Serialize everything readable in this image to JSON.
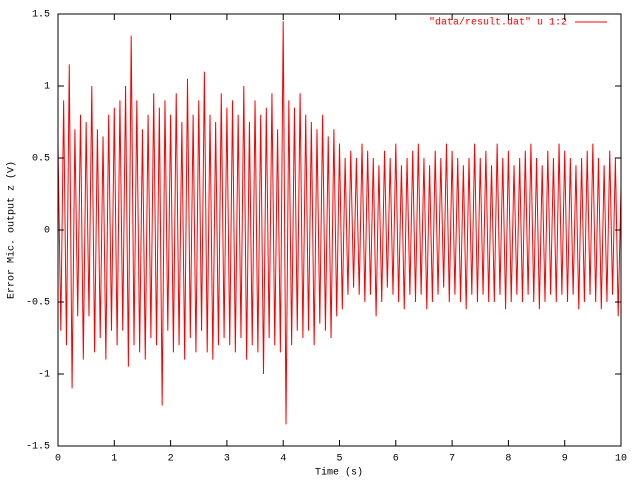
{
  "chart_data": {
    "type": "line",
    "xlabel": "Time (s)",
    "ylabel": "Error Mic. output z (V)",
    "xlim": [
      0,
      10
    ],
    "ylim": [
      -1.5,
      1.5
    ],
    "xticks": [
      0,
      1,
      2,
      3,
      4,
      5,
      6,
      7,
      8,
      9,
      10
    ],
    "yticks": [
      -1.5,
      -1,
      -0.5,
      0,
      0.5,
      1,
      1.5
    ],
    "grid": false,
    "legend": "top-right",
    "x": [
      0,
      0.05,
      0.1,
      0.15,
      0.2,
      0.25,
      0.3,
      0.35,
      0.4,
      0.45,
      0.5,
      0.55,
      0.6,
      0.65,
      0.7,
      0.75,
      0.8,
      0.85,
      0.9,
      0.95,
      1,
      1.05,
      1.1,
      1.15,
      1.2,
      1.25,
      1.3,
      1.35,
      1.4,
      1.45,
      1.5,
      1.55,
      1.6,
      1.65,
      1.7,
      1.75,
      1.8,
      1.85,
      1.9,
      1.95,
      2,
      2.05,
      2.1,
      2.15,
      2.2,
      2.25,
      2.3,
      2.35,
      2.4,
      2.45,
      2.5,
      2.55,
      2.6,
      2.65,
      2.7,
      2.75,
      2.8,
      2.85,
      2.9,
      2.95,
      3,
      3.05,
      3.1,
      3.15,
      3.2,
      3.25,
      3.3,
      3.35,
      3.4,
      3.45,
      3.5,
      3.55,
      3.6,
      3.65,
      3.7,
      3.75,
      3.8,
      3.85,
      3.9,
      3.95,
      4,
      4.05,
      4.1,
      4.15,
      4.2,
      4.25,
      4.3,
      4.35,
      4.4,
      4.45,
      4.5,
      4.55,
      4.6,
      4.65,
      4.7,
      4.75,
      4.8,
      4.85,
      4.9,
      4.95,
      5,
      5.05,
      5.1,
      5.15,
      5.2,
      5.25,
      5.3,
      5.35,
      5.4,
      5.45,
      5.5,
      5.55,
      5.6,
      5.65,
      5.7,
      5.75,
      5.8,
      5.85,
      5.9,
      5.95,
      6,
      6.05,
      6.1,
      6.15,
      6.2,
      6.25,
      6.3,
      6.35,
      6.4,
      6.45,
      6.5,
      6.55,
      6.6,
      6.65,
      6.7,
      6.75,
      6.8,
      6.85,
      6.9,
      6.95,
      7,
      7.05,
      7.1,
      7.15,
      7.2,
      7.25,
      7.3,
      7.35,
      7.4,
      7.45,
      7.5,
      7.55,
      7.6,
      7.65,
      7.7,
      7.75,
      7.8,
      7.85,
      7.9,
      7.95,
      8,
      8.05,
      8.1,
      8.15,
      8.2,
      8.25,
      8.3,
      8.35,
      8.4,
      8.45,
      8.5,
      8.55,
      8.6,
      8.65,
      8.7,
      8.75,
      8.8,
      8.85,
      8.9,
      8.95,
      9,
      9.05,
      9.1,
      9.15,
      9.2,
      9.25,
      9.3,
      9.35,
      9.4,
      9.45,
      9.5,
      9.55,
      9.6,
      9.65,
      9.7,
      9.75,
      9.8,
      9.85,
      9.9,
      9.95,
      10
    ],
    "series": [
      {
        "name": "\"data/result.dat\" u 1:2",
        "color": "#ff0000",
        "values": [
          0.6,
          -0.7,
          0.9,
          -0.8,
          1.15,
          -1.1,
          0.7,
          -0.6,
          0.8,
          -0.9,
          0.75,
          -0.6,
          1.0,
          -0.85,
          0.7,
          -0.75,
          0.65,
          -0.9,
          0.8,
          -0.7,
          0.85,
          -0.8,
          0.9,
          -0.7,
          1.0,
          -0.95,
          1.35,
          -0.8,
          0.9,
          -0.85,
          0.7,
          -0.9,
          0.8,
          -0.75,
          0.95,
          -0.8,
          0.85,
          -1.22,
          0.9,
          -0.7,
          0.8,
          -0.85,
          0.95,
          -0.8,
          0.75,
          -0.9,
          1.05,
          -0.75,
          0.8,
          -0.85,
          0.9,
          -0.7,
          1.1,
          -0.85,
          0.8,
          -0.9,
          0.75,
          -0.8,
          0.95,
          -0.75,
          0.85,
          -0.8,
          0.9,
          -0.85,
          0.8,
          -0.75,
          1.0,
          -0.9,
          0.75,
          -0.8,
          0.9,
          -0.85,
          0.8,
          -1.0,
          0.85,
          -0.75,
          0.95,
          -0.8,
          0.7,
          -0.85,
          1.45,
          -1.35,
          0.9,
          -0.8,
          0.85,
          -0.7,
          0.95,
          -0.75,
          0.8,
          -0.7,
          0.75,
          -0.8,
          0.7,
          -0.65,
          0.8,
          -0.7,
          0.65,
          -0.75,
          0.7,
          -0.6,
          0.6,
          -0.55,
          0.5,
          -0.45,
          0.55,
          -0.4,
          0.5,
          -0.45,
          0.6,
          -0.5,
          0.55,
          -0.45,
          0.5,
          -0.6,
          0.45,
          -0.5,
          0.55,
          -0.4,
          0.5,
          -0.45,
          0.6,
          -0.5,
          0.45,
          -0.55,
          0.5,
          -0.45,
          0.55,
          -0.5,
          0.6,
          -0.45,
          0.5,
          -0.55,
          0.45,
          -0.5,
          0.55,
          -0.45,
          0.5,
          -0.4,
          0.6,
          -0.5,
          0.55,
          -0.45,
          0.5,
          -0.5,
          0.45,
          -0.55,
          0.5,
          -0.45,
          0.6,
          -0.5,
          0.5,
          -0.45,
          0.55,
          -0.5,
          0.45,
          -0.5,
          0.6,
          -0.45,
          0.5,
          -0.55,
          0.55,
          -0.5,
          0.45,
          -0.45,
          0.5,
          -0.5,
          0.55,
          -0.45,
          0.6,
          -0.5,
          0.5,
          -0.55,
          0.45,
          -0.5,
          0.55,
          -0.45,
          0.5,
          -0.5,
          0.6,
          -0.45,
          0.55,
          -0.5,
          0.5,
          -0.45,
          0.45,
          -0.55,
          0.5,
          -0.5,
          0.55,
          -0.45,
          0.6,
          -0.5,
          0.5,
          -0.55,
          0.45,
          -0.5,
          0.55,
          -0.45,
          0.5,
          -0.6,
          0.3
        ]
      }
    ]
  }
}
